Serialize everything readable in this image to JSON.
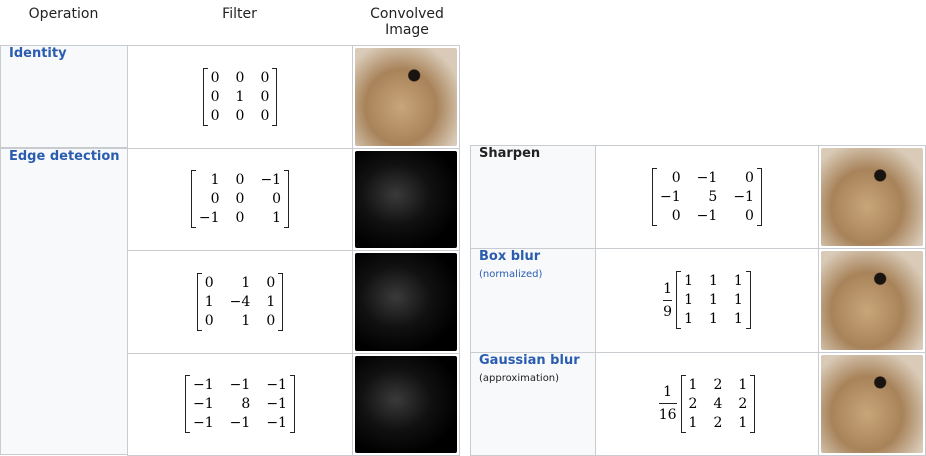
{
  "header": {
    "operation": "Operation",
    "filter": "Filter",
    "image": "Convolved Image"
  },
  "left_table": {
    "rows": [
      {
        "operation": "Identity",
        "filters": [
          {
            "matrix": [
              [
                "0",
                "0",
                "0"
              ],
              [
                "0",
                "1",
                "0"
              ],
              [
                "0",
                "0",
                "0"
              ]
            ]
          }
        ]
      },
      {
        "operation": "Edge detection",
        "filters": [
          {
            "matrix": [
              [
                "1",
                "0",
                "−1"
              ],
              [
                "0",
                "0",
                "0"
              ],
              [
                "−1",
                "0",
                "1"
              ]
            ]
          },
          {
            "matrix": [
              [
                "0",
                "1",
                "0"
              ],
              [
                "1",
                "−4",
                "1"
              ],
              [
                "0",
                "1",
                "0"
              ]
            ]
          },
          {
            "matrix": [
              [
                "−1",
                "−1",
                "−1"
              ],
              [
                "−1",
                "8",
                "−1"
              ],
              [
                "−1",
                "−1",
                "−1"
              ]
            ]
          }
        ]
      }
    ]
  },
  "right_table": {
    "rows": [
      {
        "operation": "Sharpen",
        "matrix": [
          [
            "0",
            "−1",
            "0"
          ],
          [
            "−1",
            "5",
            "−1"
          ],
          [
            "0",
            "−1",
            "0"
          ]
        ]
      },
      {
        "operation": "Box blur",
        "note": "(normalized)",
        "scale_numerator": "1",
        "scale_denominator": "9",
        "matrix": [
          [
            "1",
            "1",
            "1"
          ],
          [
            "1",
            "1",
            "1"
          ],
          [
            "1",
            "1",
            "1"
          ]
        ]
      },
      {
        "operation": "Gaussian blur",
        "note": "(approximation)",
        "scale_numerator": "1",
        "scale_denominator": "16",
        "matrix": [
          [
            "1",
            "2",
            "1"
          ],
          [
            "2",
            "4",
            "2"
          ],
          [
            "1",
            "2",
            "1"
          ]
        ]
      }
    ]
  }
}
